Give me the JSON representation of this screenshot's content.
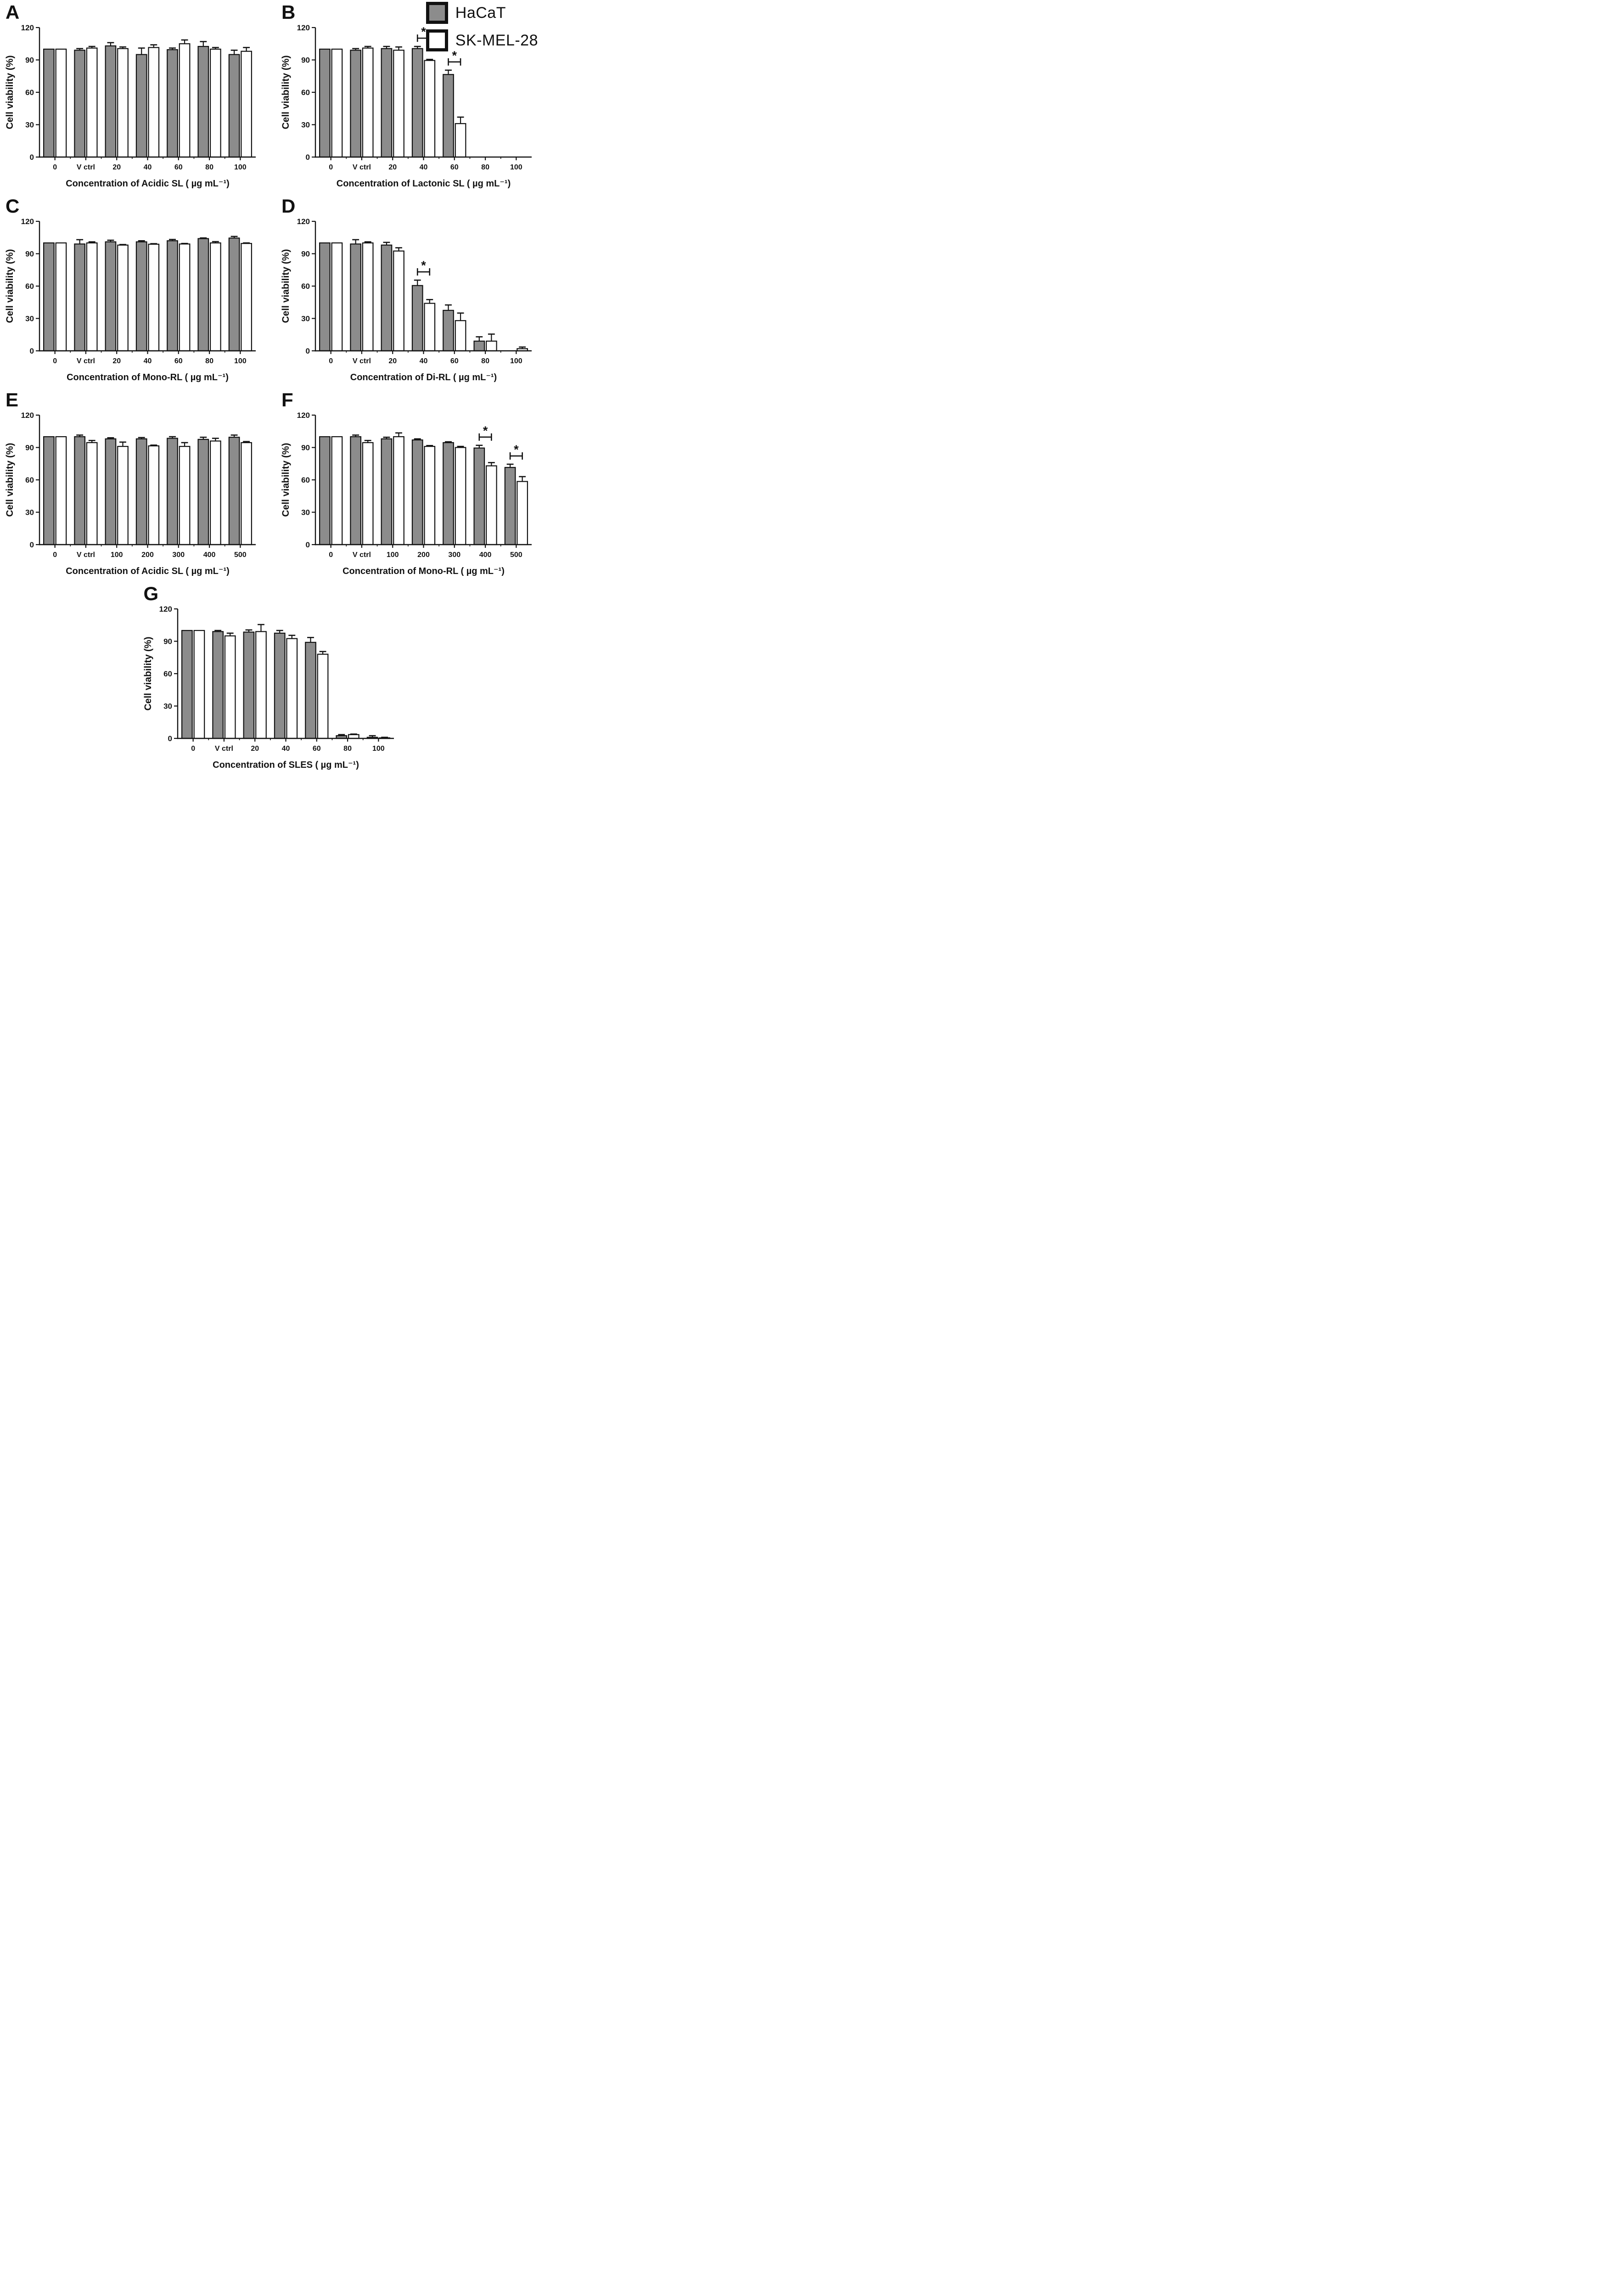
{
  "figure": {
    "legend": {
      "items": [
        {
          "label": "HaCaT",
          "color": "#8c8c8c"
        },
        {
          "label": "SK-MEL-28",
          "color": "#ffffff"
        }
      ]
    },
    "colors": {
      "bar_stroke": "#111111",
      "axis": "#111111",
      "error": "#111111"
    }
  },
  "chart_data": [
    {
      "panel": "A",
      "type": "bar",
      "title": "",
      "xlabel": "Concentration of Acidic SL ( µg mL⁻¹)",
      "ylabel": "Cell viability (%)",
      "ylim": [
        0,
        120
      ],
      "yticks": [
        0,
        30,
        60,
        90,
        120
      ],
      "categories": [
        "0",
        "V ctrl",
        "20",
        "40",
        "60",
        "80",
        "100"
      ],
      "series": [
        {
          "name": "HaCaT",
          "fill": "#8c8c8c",
          "values": [
            100,
            99,
            103,
            95,
            99.5,
            102.5,
            95
          ],
          "errors": [
            0,
            1.5,
            3,
            6,
            1.5,
            4.5,
            4
          ]
        },
        {
          "name": "SK-MEL-28",
          "fill": "#ffffff",
          "values": [
            100,
            101,
            100.5,
            101.5,
            105,
            100,
            98
          ],
          "errors": [
            0,
            1.5,
            1.5,
            2.5,
            3.5,
            1.5,
            3.5
          ]
        }
      ],
      "significance": []
    },
    {
      "panel": "B",
      "type": "bar",
      "title": "",
      "xlabel": "Concentration of Lactonic SL ( µg mL⁻¹)",
      "ylabel": "Cell viability (%)",
      "ylim": [
        0,
        120
      ],
      "yticks": [
        0,
        30,
        60,
        90,
        120
      ],
      "categories": [
        "0",
        "V ctrl",
        "20",
        "40",
        "60",
        "80",
        "100"
      ],
      "series": [
        {
          "name": "HaCaT",
          "fill": "#8c8c8c",
          "values": [
            100,
            99,
            100.5,
            100.5,
            76.5,
            0,
            0
          ],
          "errors": [
            0,
            1.5,
            2,
            2,
            4,
            0,
            0
          ]
        },
        {
          "name": "SK-MEL-28",
          "fill": "#ffffff",
          "values": [
            100,
            101,
            99,
            89.5,
            31,
            0,
            0
          ],
          "errors": [
            0,
            1.5,
            3,
            1,
            6,
            0,
            0
          ]
        }
      ],
      "significance": [
        {
          "category_index": 3,
          "label": "*"
        },
        {
          "category_index": 4,
          "label": "*"
        }
      ]
    },
    {
      "panel": "C",
      "type": "bar",
      "title": "",
      "xlabel": "Concentration of Mono-RL ( µg mL⁻¹)",
      "ylabel": "Cell viability (%)",
      "ylim": [
        0,
        120
      ],
      "yticks": [
        0,
        30,
        60,
        90,
        120
      ],
      "categories": [
        "0",
        "V ctrl",
        "20",
        "40",
        "60",
        "80",
        "100"
      ],
      "series": [
        {
          "name": "HaCaT",
          "fill": "#8c8c8c",
          "values": [
            100,
            99,
            101,
            101,
            102,
            104,
            104.5
          ],
          "errors": [
            0,
            4,
            1.5,
            1,
            1.2,
            0.6,
            1.5
          ]
        },
        {
          "name": "SK-MEL-28",
          "fill": "#ffffff",
          "values": [
            100,
            100,
            98,
            98.8,
            99,
            100,
            99.5
          ],
          "errors": [
            0,
            1,
            0.5,
            0.5,
            0.5,
            1.2,
            0.5
          ]
        }
      ],
      "significance": []
    },
    {
      "panel": "D",
      "type": "bar",
      "title": "",
      "xlabel": "Concentration of Di-RL ( µg mL⁻¹)",
      "ylabel": "Cell viability (%)",
      "ylim": [
        0,
        120
      ],
      "yticks": [
        0,
        30,
        60,
        90,
        120
      ],
      "categories": [
        "0",
        "V ctrl",
        "20",
        "40",
        "60",
        "80",
        "100"
      ],
      "series": [
        {
          "name": "HaCaT",
          "fill": "#8c8c8c",
          "values": [
            100,
            99,
            98,
            60.5,
            37.5,
            9,
            0
          ],
          "errors": [
            0,
            4,
            2.5,
            5,
            5,
            4,
            0
          ]
        },
        {
          "name": "SK-MEL-28",
          "fill": "#ffffff",
          "values": [
            100,
            100,
            92.5,
            44,
            28,
            9,
            2
          ],
          "errors": [
            0,
            1,
            3,
            3.5,
            7,
            6.5,
            1.5
          ]
        }
      ],
      "significance": [
        {
          "category_index": 3,
          "label": "*"
        }
      ]
    },
    {
      "panel": "E",
      "type": "bar",
      "title": "",
      "xlabel": "Concentration of Acidic SL ( µg mL⁻¹)",
      "ylabel": "Cell viability (%)",
      "ylim": [
        0,
        120
      ],
      "yticks": [
        0,
        30,
        60,
        90,
        120
      ],
      "categories": [
        "0",
        "V ctrl",
        "100",
        "200",
        "300",
        "400",
        "500"
      ],
      "series": [
        {
          "name": "HaCaT",
          "fill": "#8c8c8c",
          "values": [
            100,
            100,
            98,
            98,
            98.5,
            97.5,
            99.5
          ],
          "errors": [
            0,
            1.5,
            1,
            1.2,
            1.5,
            2,
            2
          ]
        },
        {
          "name": "SK-MEL-28",
          "fill": "#ffffff",
          "values": [
            100,
            94.5,
            91,
            91.5,
            91,
            96,
            94.5
          ],
          "errors": [
            0,
            2,
            4,
            0.7,
            3.5,
            2.5,
            1
          ]
        }
      ],
      "significance": []
    },
    {
      "panel": "F",
      "type": "bar",
      "title": "",
      "xlabel": "Concentration of Mono-RL ( µg mL⁻¹)",
      "ylabel": "Cell viability (%)",
      "ylim": [
        0,
        120
      ],
      "yticks": [
        0,
        30,
        60,
        90,
        120
      ],
      "categories": [
        "0",
        "V ctrl",
        "100",
        "200",
        "300",
        "400",
        "500"
      ],
      "series": [
        {
          "name": "HaCaT",
          "fill": "#8c8c8c",
          "values": [
            100,
            100,
            98,
            97,
            94.5,
            89.5,
            71.5
          ],
          "errors": [
            0,
            1.5,
            1.5,
            1,
            0.8,
            2.5,
            3
          ]
        },
        {
          "name": "SK-MEL-28",
          "fill": "#ffffff",
          "values": [
            100,
            94.5,
            100,
            91,
            90,
            73,
            58.5
          ],
          "errors": [
            0,
            2,
            3.5,
            0.8,
            1,
            3,
            4.5
          ]
        }
      ],
      "significance": [
        {
          "category_index": 5,
          "label": "*"
        },
        {
          "category_index": 6,
          "label": "*"
        }
      ]
    },
    {
      "panel": "G",
      "type": "bar",
      "title": "",
      "xlabel": "Concentration of SLES ( µg mL⁻¹)",
      "ylabel": "Cell viability (%)",
      "ylim": [
        0,
        120
      ],
      "yticks": [
        0,
        30,
        60,
        90,
        120
      ],
      "categories": [
        "0",
        "V ctrl",
        "20",
        "40",
        "60",
        "80",
        "100"
      ],
      "series": [
        {
          "name": "HaCaT",
          "fill": "#8c8c8c",
          "values": [
            100,
            99,
            98.5,
            97.5,
            89,
            2.5,
            1
          ],
          "errors": [
            0,
            1,
            2,
            2.5,
            4.5,
            1,
            1.5
          ]
        },
        {
          "name": "SK-MEL-28",
          "fill": "#ffffff",
          "values": [
            100,
            95,
            99,
            92.5,
            78,
            3.5,
            0.5
          ],
          "errors": [
            0,
            2.5,
            6.5,
            3,
            2.5,
            0.5,
            0.5
          ]
        }
      ],
      "significance": []
    }
  ]
}
